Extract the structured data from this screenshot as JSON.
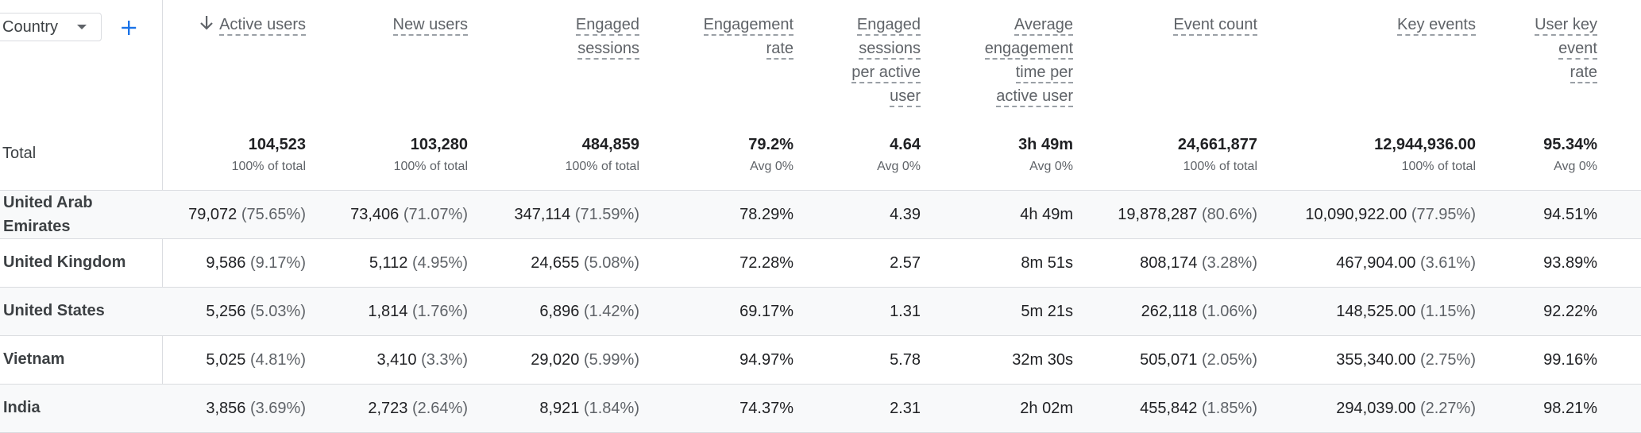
{
  "dimension_selector": {
    "value": "Country"
  },
  "columns": [
    {
      "key": "active_users",
      "label": "Active users",
      "lines": [
        "Active users"
      ],
      "sorted": true
    },
    {
      "key": "new_users",
      "label": "New users",
      "lines": [
        "New users"
      ]
    },
    {
      "key": "engaged_sessions",
      "label": "Engaged sessions",
      "lines": [
        "Engaged",
        "sessions"
      ]
    },
    {
      "key": "engagement_rate",
      "label": "Engagement rate",
      "lines": [
        "Engagement",
        "rate"
      ]
    },
    {
      "key": "engaged_sessions_per_user",
      "label": "Engaged sessions per active user",
      "lines": [
        "Engaged",
        "sessions",
        "per active",
        "user"
      ]
    },
    {
      "key": "avg_engagement_time",
      "label": "Average engagement time per active user",
      "lines": [
        "Average",
        "engagement",
        "time per",
        "active user"
      ]
    },
    {
      "key": "event_count",
      "label": "Event count",
      "lines": [
        "Event count"
      ]
    },
    {
      "key": "key_events",
      "label": "Key events",
      "lines": [
        "Key events"
      ]
    },
    {
      "key": "user_key_event_rate",
      "label": "User key event rate",
      "lines": [
        "User key",
        "event",
        "rate"
      ]
    }
  ],
  "totals": {
    "label": "Total",
    "values": [
      {
        "value": "104,523",
        "sub": "100% of total"
      },
      {
        "value": "103,280",
        "sub": "100% of total"
      },
      {
        "value": "484,859",
        "sub": "100% of total"
      },
      {
        "value": "79.2%",
        "sub": "Avg 0%"
      },
      {
        "value": "4.64",
        "sub": "Avg 0%"
      },
      {
        "value": "3h 49m",
        "sub": "Avg 0%"
      },
      {
        "value": "24,661,877",
        "sub": "100% of total"
      },
      {
        "value": "12,944,936.00",
        "sub": "100% of total"
      },
      {
        "value": "95.34%",
        "sub": "Avg 0%"
      }
    ]
  },
  "rows": [
    {
      "label_lines": [
        "United Arab",
        "Emirates"
      ],
      "cells": [
        {
          "value": "79,072",
          "pct": "(75.65%)"
        },
        {
          "value": "73,406",
          "pct": "(71.07%)"
        },
        {
          "value": "347,114",
          "pct": "(71.59%)"
        },
        {
          "value": "78.29%"
        },
        {
          "value": "4.39"
        },
        {
          "value": "4h 49m"
        },
        {
          "value": "19,878,287",
          "pct": "(80.6%)"
        },
        {
          "value": "10,090,922.00",
          "pct": "(77.95%)"
        },
        {
          "value": "94.51%"
        }
      ]
    },
    {
      "label_lines": [
        "United Kingdom"
      ],
      "cells": [
        {
          "value": "9,586",
          "pct": "(9.17%)"
        },
        {
          "value": "5,112",
          "pct": "(4.95%)"
        },
        {
          "value": "24,655",
          "pct": "(5.08%)"
        },
        {
          "value": "72.28%"
        },
        {
          "value": "2.57"
        },
        {
          "value": "8m 51s"
        },
        {
          "value": "808,174",
          "pct": "(3.28%)"
        },
        {
          "value": "467,904.00",
          "pct": "(3.61%)"
        },
        {
          "value": "93.89%"
        }
      ]
    },
    {
      "label_lines": [
        "United States"
      ],
      "cells": [
        {
          "value": "5,256",
          "pct": "(5.03%)"
        },
        {
          "value": "1,814",
          "pct": "(1.76%)"
        },
        {
          "value": "6,896",
          "pct": "(1.42%)"
        },
        {
          "value": "69.17%"
        },
        {
          "value": "1.31"
        },
        {
          "value": "5m 21s"
        },
        {
          "value": "262,118",
          "pct": "(1.06%)"
        },
        {
          "value": "148,525.00",
          "pct": "(1.15%)"
        },
        {
          "value": "92.22%"
        }
      ]
    },
    {
      "label_lines": [
        "Vietnam"
      ],
      "cells": [
        {
          "value": "5,025",
          "pct": "(4.81%)"
        },
        {
          "value": "3,410",
          "pct": "(3.3%)"
        },
        {
          "value": "29,020",
          "pct": "(5.99%)"
        },
        {
          "value": "94.97%"
        },
        {
          "value": "5.78"
        },
        {
          "value": "32m 30s"
        },
        {
          "value": "505,071",
          "pct": "(2.05%)"
        },
        {
          "value": "355,340.00",
          "pct": "(2.75%)"
        },
        {
          "value": "99.16%"
        }
      ]
    },
    {
      "label_lines": [
        "India"
      ],
      "cells": [
        {
          "value": "3,856",
          "pct": "(3.69%)"
        },
        {
          "value": "2,723",
          "pct": "(2.64%)"
        },
        {
          "value": "8,921",
          "pct": "(1.84%)"
        },
        {
          "value": "74.37%"
        },
        {
          "value": "2.31"
        },
        {
          "value": "2h 02m"
        },
        {
          "value": "455,842",
          "pct": "(1.85%)"
        },
        {
          "value": "294,039.00",
          "pct": "(2.27%)"
        },
        {
          "value": "98.21%"
        }
      ]
    }
  ]
}
